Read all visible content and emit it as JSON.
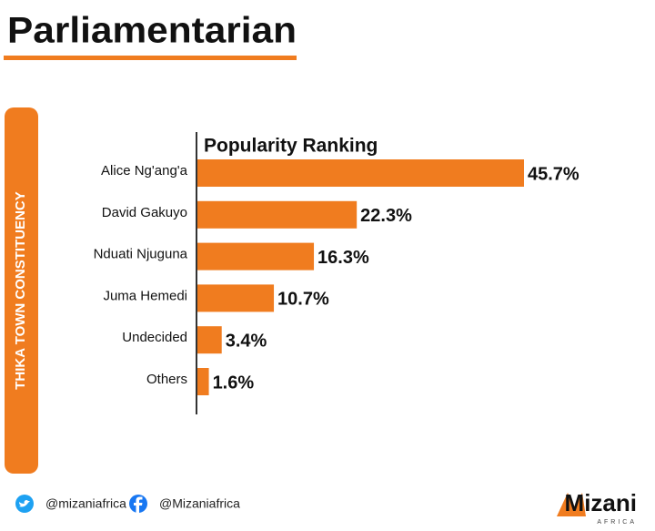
{
  "header": {
    "title": "Parliamentarian"
  },
  "sidebar": {
    "label": "THIKA TOWN CONSTITUENCY"
  },
  "chart_data": {
    "type": "bar",
    "orientation": "horizontal",
    "title": "Popularity Ranking",
    "categories": [
      "Alice Ng'ang'a",
      "David Gakuyo",
      "Nduati Njuguna",
      "Juma Hemedi",
      "Undecided",
      "Others"
    ],
    "values": [
      45.7,
      22.3,
      16.3,
      10.7,
      3.4,
      1.6
    ],
    "value_labels": [
      "45.7%",
      "22.3%",
      "16.3%",
      "10.7%",
      "3.4%",
      "1.6%"
    ],
    "color": "#f07c1f"
  },
  "footer": {
    "twitter": "@mizaniafrica",
    "facebook": "@Mizaniafrica",
    "brand": "Mizani",
    "brand_sub": "AFRICA"
  }
}
